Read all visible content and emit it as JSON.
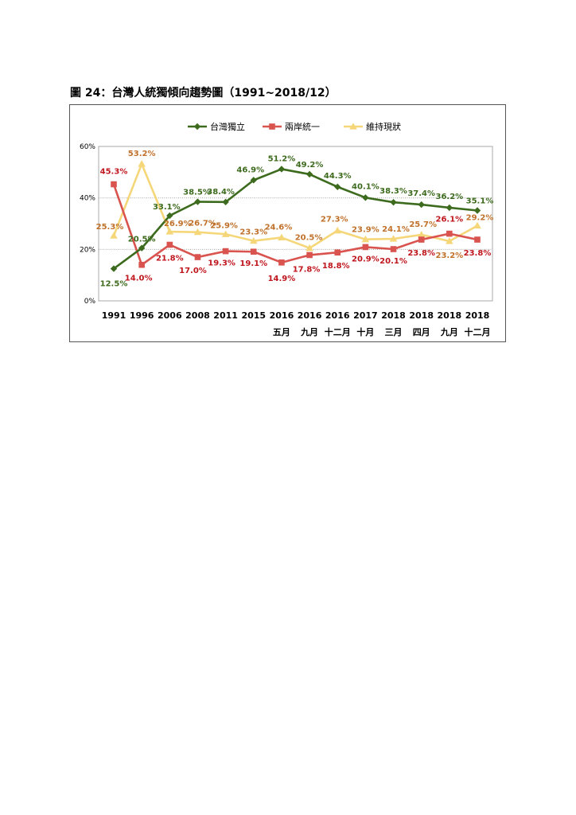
{
  "figure_title": "圖 24：台灣人統獨傾向趨勢圖（1991~2018/12）",
  "chart_data": {
    "type": "line",
    "title": "",
    "xlabel": "",
    "ylabel": "",
    "ylim": [
      0,
      60
    ],
    "y_ticks": [
      "0%",
      "20%",
      "40%",
      "60%"
    ],
    "y_tick_values": [
      0,
      20,
      40,
      60
    ],
    "legend_position": "top-center",
    "categories": [
      {
        "year": "1991",
        "sub": ""
      },
      {
        "year": "1996",
        "sub": ""
      },
      {
        "year": "2006",
        "sub": ""
      },
      {
        "year": "2008",
        "sub": ""
      },
      {
        "year": "2011",
        "sub": ""
      },
      {
        "year": "2015",
        "sub": ""
      },
      {
        "year": "2016",
        "sub": "五月"
      },
      {
        "year": "2016",
        "sub": "九月"
      },
      {
        "year": "2016",
        "sub": "十二月"
      },
      {
        "year": "2017",
        "sub": "十月"
      },
      {
        "year": "2018",
        "sub": "三月"
      },
      {
        "year": "2018",
        "sub": "四月"
      },
      {
        "year": "2018",
        "sub": "九月"
      },
      {
        "year": "2018",
        "sub": "十二月"
      }
    ],
    "series": [
      {
        "name": "台灣獨立",
        "color": "#3d6b1e",
        "label_color": "#3d6b1e",
        "marker": "diamond",
        "values": [
          12.5,
          20.5,
          33.1,
          38.5,
          38.4,
          46.9,
          51.2,
          49.2,
          44.3,
          40.1,
          38.3,
          37.4,
          36.2,
          35.1
        ],
        "labels": [
          "12.5%",
          "20.5%",
          "33.1%",
          "38.5%",
          "38.4%",
          "46.9%",
          "51.2%",
          "49.2%",
          "44.3%",
          "40.1%",
          "38.3%",
          "37.4%",
          "36.2%",
          "35.1%"
        ]
      },
      {
        "name": "兩岸統一",
        "color": "#d9534f",
        "label_color": "#c0161e",
        "marker": "square",
        "values": [
          45.3,
          14.0,
          21.8,
          17.0,
          19.3,
          19.1,
          14.9,
          17.8,
          18.8,
          20.9,
          20.1,
          23.8,
          26.1,
          23.8
        ],
        "labels": [
          "45.3%",
          "14.0%",
          "21.8%",
          "17.0%",
          "19.3%",
          "19.1%",
          "14.9%",
          "17.8%",
          "18.8%",
          "20.9%",
          "20.1%",
          "23.8%",
          "26.1%",
          "23.8%"
        ]
      },
      {
        "name": "維持現狀",
        "color": "#f5d77a",
        "label_color": "#c0712a",
        "marker": "triangle",
        "values": [
          25.3,
          53.2,
          26.9,
          26.7,
          25.9,
          23.3,
          24.6,
          20.5,
          27.3,
          23.9,
          24.1,
          25.7,
          23.2,
          29.2
        ],
        "labels": [
          "25.3%",
          "53.2%",
          "26.9%",
          "26.7%",
          "25.9%",
          "23.3%",
          "24.6%",
          "20.5%",
          "27.3%",
          "23.9%",
          "24.1%",
          "25.7%",
          "23.2%",
          "29.2%"
        ]
      }
    ]
  }
}
